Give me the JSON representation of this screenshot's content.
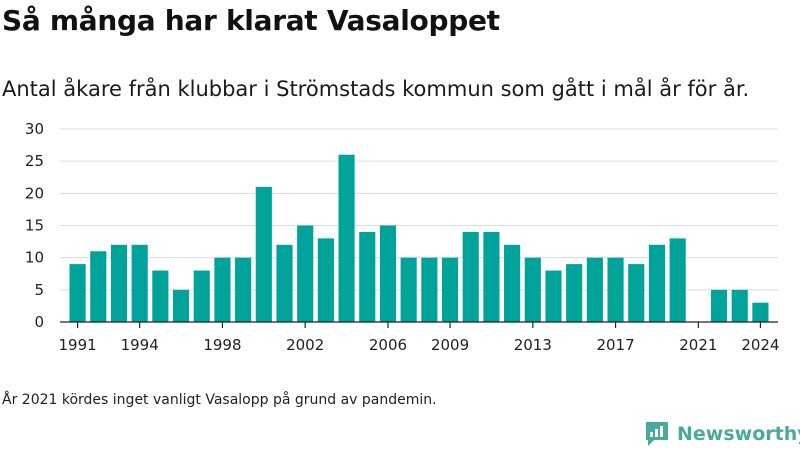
{
  "title": "Så många har klarat Vasaloppet",
  "subtitle": "Antal åkare från klubbar i Strömstads kommun som gått i mål år för år.",
  "note": "År 2021 kördes inget vanligt Vasalopp på grund av pandemin.",
  "brand": {
    "name": "Newsworthy",
    "color": "#4aaa9a",
    "icon": "newsworthy-bar-chart-icon"
  },
  "chart_data": {
    "type": "bar",
    "x": [
      1991,
      1992,
      1993,
      1994,
      1995,
      1996,
      1997,
      1998,
      1999,
      2000,
      2001,
      2002,
      2003,
      2004,
      2005,
      2006,
      2007,
      2008,
      2009,
      2010,
      2011,
      2012,
      2013,
      2014,
      2015,
      2016,
      2017,
      2018,
      2019,
      2020,
      2021,
      2022,
      2023,
      2024
    ],
    "values": [
      9,
      11,
      12,
      12,
      8,
      5,
      8,
      10,
      10,
      21,
      12,
      15,
      13,
      26,
      14,
      15,
      10,
      10,
      10,
      14,
      14,
      12,
      10,
      8,
      9,
      10,
      10,
      9,
      12,
      13,
      null,
      5,
      5,
      3
    ],
    "xticks": [
      1991,
      1994,
      1998,
      2002,
      2006,
      2009,
      2013,
      2017,
      2021,
      2024
    ],
    "yticks": [
      0,
      5,
      10,
      15,
      20,
      25,
      30
    ],
    "ylim": [
      0,
      30
    ],
    "grid": true,
    "bar_color": "#00a39a"
  }
}
